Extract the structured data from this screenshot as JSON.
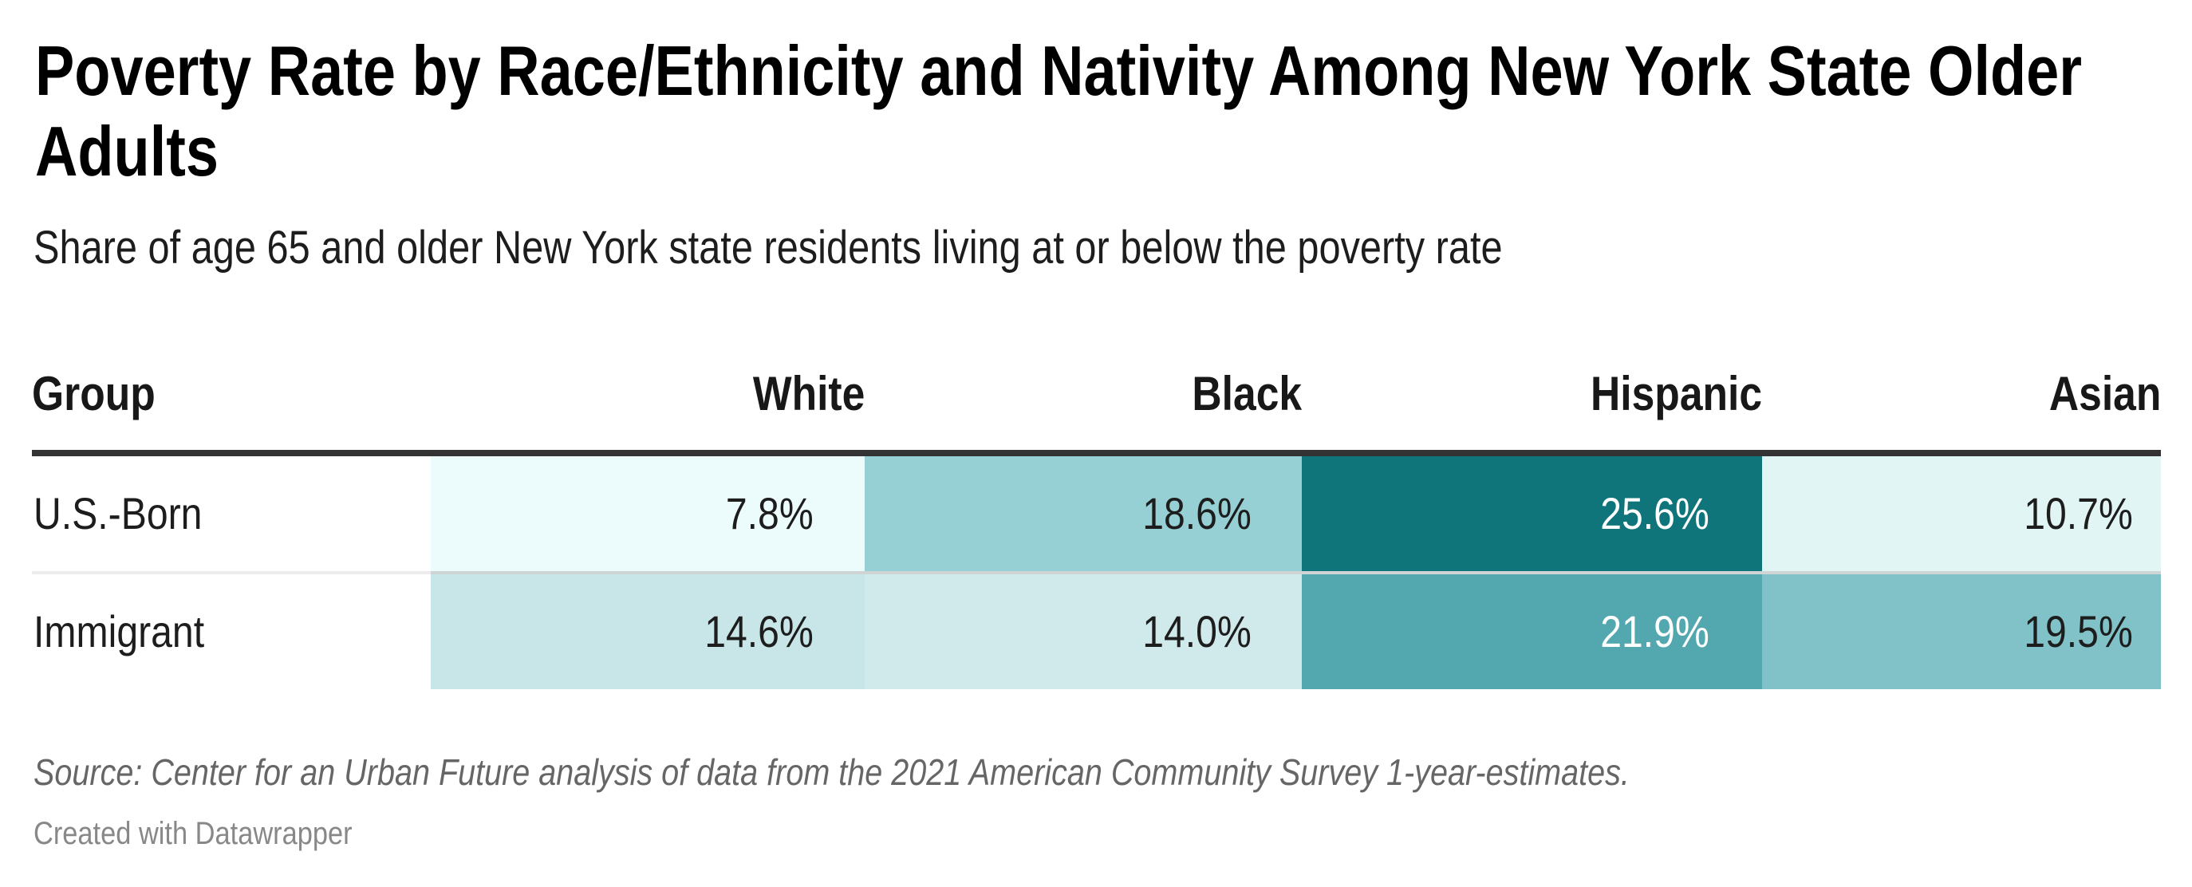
{
  "chart_data": {
    "type": "table",
    "title": "Poverty Rate by Race/Ethnicity and Nativity Among New York State Older Adults",
    "subtitle": "Share of age 65 and older New York state residents living at or below the poverty rate",
    "columns": [
      "Group",
      "White",
      "Black",
      "Hispanic",
      "Asian"
    ],
    "rows": [
      {
        "label": "U.S.-Born",
        "values": [
          7.8,
          18.6,
          25.6,
          10.7
        ],
        "display": [
          "7.8%",
          "18.6%",
          "25.6%",
          "10.7%"
        ],
        "colors": [
          "#ecfcfc",
          "#96cfd4",
          "#10757b",
          "#e2f5f5"
        ],
        "text_inverse": [
          false,
          false,
          true,
          false
        ]
      },
      {
        "label": "Immigrant",
        "values": [
          14.6,
          14.0,
          21.9,
          19.5
        ],
        "display": [
          "14.6%",
          "14.0%",
          "21.9%",
          "19.5%"
        ],
        "colors": [
          "#c8e6e8",
          "#d0e9eb",
          "#52a8ae",
          "#80c2c7"
        ],
        "text_inverse": [
          false,
          false,
          true,
          false
        ]
      }
    ],
    "unit": "%",
    "color_scale": {
      "type": "sequential",
      "low_color": "#ecfcfc",
      "high_color": "#10757b"
    },
    "source": "Source: Center for an Urban Future analysis of data from the 2021 American Community Survey 1-year-estimates.",
    "credit": "Created with Datawrapper"
  },
  "colors": {
    "header_rule": "#333333",
    "row_separator": "#ececec",
    "title": "#000000",
    "source_text": "#666666",
    "credit_text": "#888888"
  }
}
